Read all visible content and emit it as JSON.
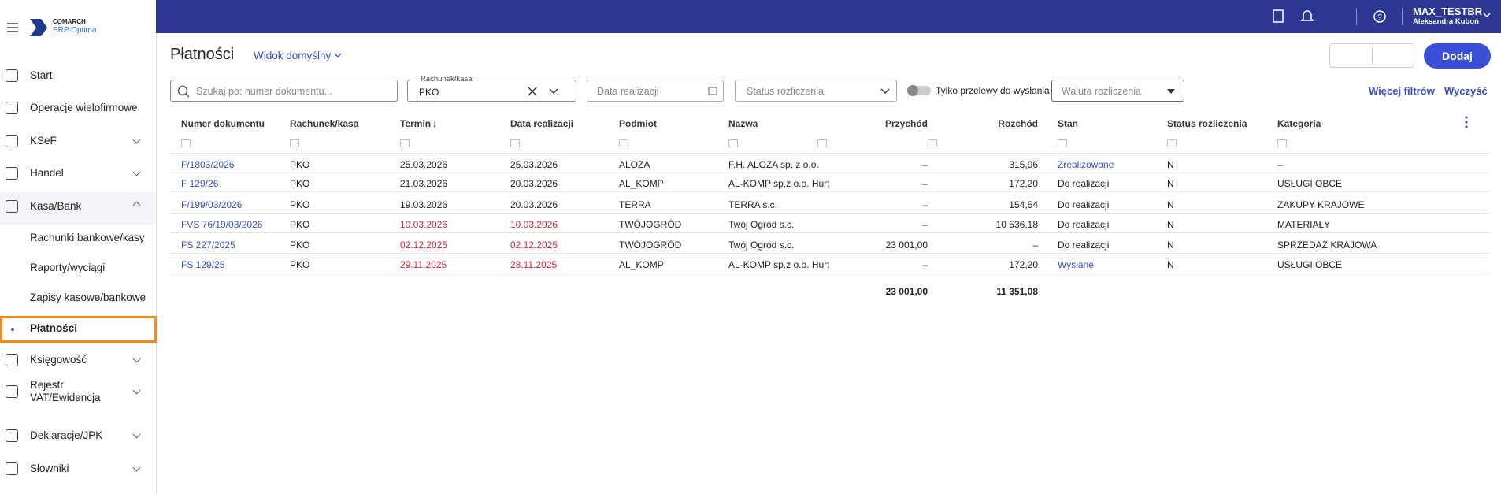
{
  "sidebar": {
    "brand": "COMARCH",
    "product": "ERP Optima",
    "items": [
      "Start",
      "Operacje wielofirmowe",
      "KSeF",
      "Handel",
      "Kasa/Bank",
      "Rachunki bankowe/kasy",
      "Raporty/wyciągi",
      "Zapisy kasowe/bankowe",
      "Płatności",
      "Księgowość",
      "Rejestr VAT/Ewidencja",
      "Deklaracje/JPK",
      "Słowniki"
    ]
  },
  "topbar": {
    "user": "MAX_TESTBR",
    "person": "Aleksandra Kuboń"
  },
  "header": {
    "title": "Płatności",
    "view": "Widok domyślny",
    "add": "Dodaj"
  },
  "filters": {
    "search": "Szukaj po: numer dokumentu...",
    "account_label": "Rachunek/kasa",
    "account": "PKO",
    "date": "Data realizacji",
    "status": "Status rozliczenia",
    "toggle": "Tylko przelewy do wysłania",
    "currency": "Waluta rozliczenia",
    "more": "Więcej filtrów",
    "clear": "Wyczyść"
  },
  "table": {
    "columns": [
      "Numer dokumentu",
      "Rachunek/kasa",
      "Termin",
      "Data realizacji",
      "Podmiot",
      "Nazwa",
      "Przychód",
      "Rozchód",
      "Stan",
      "Status rozliczenia",
      "Kategoria"
    ],
    "rows": [
      [
        "F/1803/2026",
        "PKO",
        "25.03.2026",
        "25.03.2026",
        "ALOZA",
        "F.H. ALOZA sp. z o.o.",
        "–",
        "315,96",
        "Zrealizowane",
        "N",
        "–"
      ],
      [
        "F 129/26",
        "PKO",
        "21.03.2026",
        "20.03.2026",
        "AL_KOMP",
        "AL-KOMP sp.z o.o. Hurtow",
        "–",
        "172,20",
        "Do realizacji",
        "N",
        "USŁUGI OBCE"
      ],
      [
        "F/199/03/2026",
        "PKO",
        "19.03.2026",
        "20.03.2026",
        "TERRA",
        "TERRA s.c.",
        "–",
        "154,54",
        "Do realizacji",
        "N",
        "ZAKUPY KRAJOWE"
      ],
      [
        "FVS 76/19/03/2026",
        "PKO",
        "10.03.2026",
        "10.03.2026",
        "TWÓJOGRÓD",
        "Twój Ogród s.c.",
        "–",
        "10 536,18",
        "Do realizacji",
        "N",
        "MATERIAŁY"
      ],
      [
        "FS 227/2025",
        "PKO",
        "02.12.2025",
        "02.12.2025",
        "TWÓJOGRÓD",
        "Twój Ogród s.c.",
        "23 001,00",
        "–",
        "Do realizacji",
        "N",
        "SPRZEDAŻ KRAJOWA"
      ],
      [
        "FS 129/25",
        "PKO",
        "29.11.2025",
        "28.11.2025",
        "AL_KOMP",
        "AL-KOMP sp.z o.o. Hurtow",
        "–",
        "172,20",
        "Wysłane",
        "N",
        "USŁUGI OBCE"
      ]
    ],
    "totals": {
      "income": "23 001,00",
      "expense": "11 351,08"
    }
  }
}
